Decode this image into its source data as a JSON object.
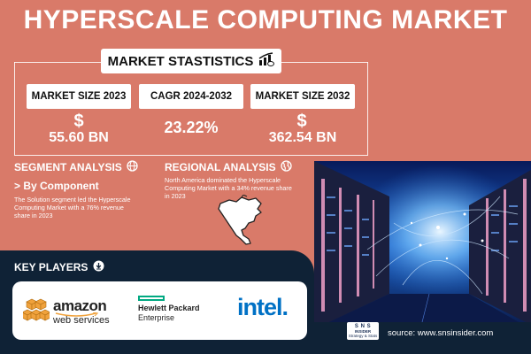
{
  "title": "HYPERSCALE COMPUTING MARKET",
  "market_statistics": {
    "label": "MARKET STASTISTICS",
    "icon": "chart-icon",
    "size_2023": {
      "label": "MARKET SIZE 2023",
      "symbol": "$",
      "value": "55.60 BN"
    },
    "cagr": {
      "label": "CAGR 2024-2032",
      "value": "23.22%"
    },
    "size_2032": {
      "label": "MARKET SIZE 2032",
      "symbol": "$",
      "value": "362.54 BN"
    }
  },
  "segment_analysis": {
    "heading": "SEGMENT ANALYSIS",
    "subheading": "> By Component",
    "text_lines": [
      "The Solution segment led the Hyperscale",
      "Computing Market with a 76% revenue",
      "share in 2023"
    ]
  },
  "regional_analysis": {
    "heading": "REGIONAL ANALYSIS",
    "text_lines": [
      "North America dominated the Hyperscale",
      "Computing Market with a 34% revenue share",
      "in 2023"
    ]
  },
  "key_players": {
    "heading": "KEY PLAYERS",
    "amazon": {
      "line1": "amazon",
      "line2": "web services"
    },
    "hpe": {
      "line1": "Hewlett Packard",
      "line2": "Enterprise"
    },
    "intel": {
      "text": "intel."
    }
  },
  "footer": {
    "logo_line1": "S N S",
    "logo_line2": "INSIDER",
    "logo_line3": "Strategy & Stats",
    "source": "source: www.snsinsider.com"
  },
  "colors": {
    "background": "#d97a69",
    "navy": "#0f2236",
    "amazon_orange": "#f0a23c",
    "hpe_green": "#01a982",
    "intel_blue": "#0071c5"
  }
}
